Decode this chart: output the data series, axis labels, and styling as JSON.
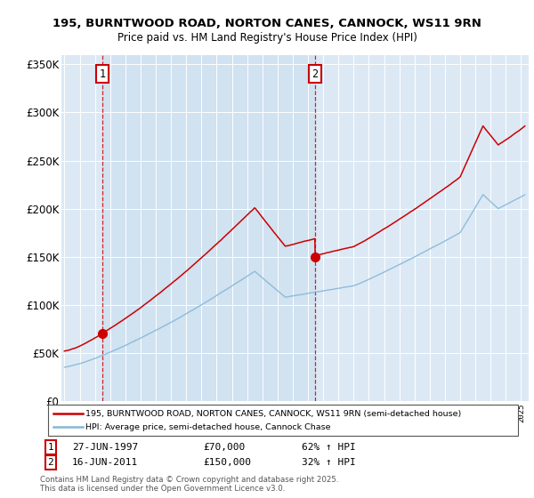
{
  "title_line1": "195, BURNTWOOD ROAD, NORTON CANES, CANNOCK, WS11 9RN",
  "title_line2": "Price paid vs. HM Land Registry's House Price Index (HPI)",
  "bg_color": "#dce9f5",
  "red_color": "#cc0000",
  "blue_color": "#85b8d8",
  "dashed_color": "#cc0000",
  "sale1_year": 1997.49,
  "sale1_price": 70000,
  "sale1_label": "1",
  "sale1_date": "27-JUN-1997",
  "sale1_pct": "62% ↑ HPI",
  "sale2_year": 2011.46,
  "sale2_price": 150000,
  "sale2_label": "2",
  "sale2_date": "16-JUN-2011",
  "sale2_pct": "32% ↑ HPI",
  "legend_line1": "195, BURNTWOOD ROAD, NORTON CANES, CANNOCK, WS11 9RN (semi-detached house)",
  "legend_line2": "HPI: Average price, semi-detached house, Cannock Chase",
  "footnote": "Contains HM Land Registry data © Crown copyright and database right 2025.\nThis data is licensed under the Open Government Licence v3.0.",
  "ylim": [
    0,
    360000
  ],
  "xlim_start": 1994.8,
  "xlim_end": 2025.5
}
